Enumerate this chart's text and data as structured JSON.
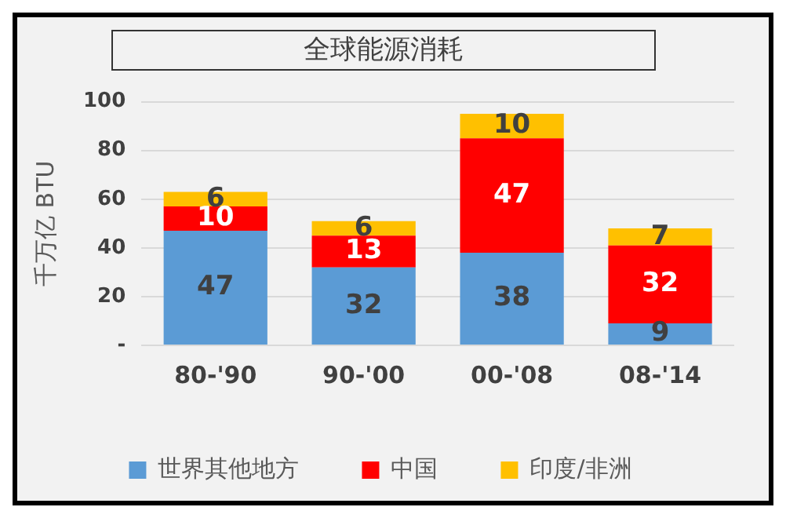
{
  "chart_data": {
    "type": "bar",
    "title": "全球能源消耗",
    "ylabel": "千万亿 BTU",
    "categories": [
      "80-'90",
      "90-'00",
      "00-'08",
      "08-'14"
    ],
    "series": [
      {
        "name": "世界其他地方",
        "color": "#5b9bd5",
        "values": [
          47,
          32,
          38,
          9
        ]
      },
      {
        "name": "中国",
        "color": "#ff0000",
        "values": [
          10,
          13,
          47,
          32
        ]
      },
      {
        "name": "印度/非洲",
        "color": "#ffc000",
        "values": [
          6,
          6,
          10,
          7
        ]
      }
    ],
    "stacked": true,
    "ylim": [
      0,
      100
    ],
    "yticks": [
      {
        "value": 0,
        "label": "-"
      },
      20,
      40,
      60,
      80,
      100
    ],
    "grid": "y",
    "legend": "bottom",
    "data_labels": true
  }
}
